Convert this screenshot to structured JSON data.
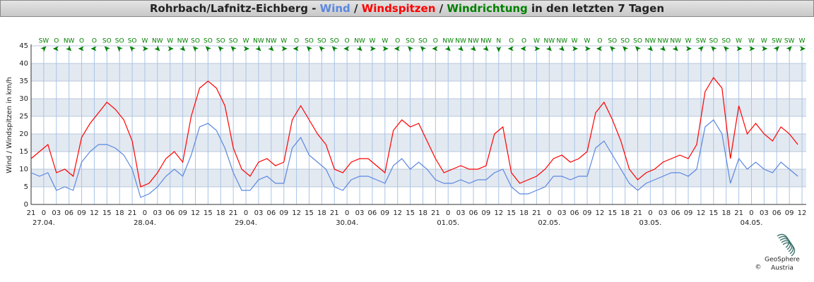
{
  "chart_data": {
    "type": "line",
    "title_parts": [
      "Rohrbach/Lafnitz-Eichberg - ",
      " / ",
      " / ",
      " in den letzten 7 Tagen"
    ],
    "ylabel": "Wind / Windspitzen in km/h",
    "x": [
      0,
      2,
      4,
      6,
      8,
      10,
      12,
      14,
      16,
      18,
      20,
      22,
      24,
      26,
      28,
      30,
      32,
      34,
      36,
      38,
      40,
      42,
      44,
      46,
      48,
      50,
      52,
      54,
      56,
      58,
      60,
      62,
      64,
      66,
      68,
      70,
      72,
      74,
      76,
      78,
      80,
      82,
      84,
      86,
      88,
      90,
      92,
      94,
      96,
      98,
      100,
      102,
      104,
      106,
      108,
      110,
      112,
      114,
      116,
      118,
      120,
      122,
      124,
      126,
      128,
      130,
      132,
      134,
      136,
      138,
      140,
      142,
      144,
      146,
      148,
      150,
      152,
      154,
      156,
      158,
      160,
      162,
      164,
      166,
      168,
      170,
      172,
      174,
      176,
      178,
      180,
      182
    ],
    "series": [
      {
        "name": "Wind",
        "color": "#5b87e0",
        "values": [
          9,
          8,
          9,
          4,
          5,
          4,
          12,
          15,
          17,
          17,
          16,
          14,
          10,
          2,
          3,
          5,
          8,
          10,
          8,
          14,
          22,
          23,
          21,
          16,
          9,
          4,
          4,
          7,
          8,
          6,
          6,
          16,
          19,
          14,
          12,
          10,
          5,
          4,
          7,
          8,
          8,
          7,
          6,
          11,
          13,
          10,
          12,
          10,
          7,
          6,
          6,
          7,
          6,
          7,
          7,
          9,
          10,
          5,
          3,
          3,
          4,
          5,
          8,
          8,
          7,
          8,
          8,
          16,
          18,
          14,
          10,
          6,
          4,
          6,
          7,
          8,
          9,
          9,
          8,
          10,
          22,
          24,
          20,
          6,
          13,
          10,
          12,
          10,
          9,
          12,
          10,
          8
        ]
      },
      {
        "name": "Windspitzen",
        "color": "#ff0000",
        "values": [
          13,
          15,
          17,
          9,
          10,
          8,
          19,
          23,
          26,
          29,
          27,
          24,
          18,
          5,
          6,
          9,
          13,
          15,
          12,
          25,
          33,
          35,
          33,
          28,
          16,
          10,
          8,
          12,
          13,
          11,
          12,
          24,
          28,
          24,
          20,
          17,
          10,
          9,
          12,
          13,
          13,
          11,
          9,
          21,
          24,
          22,
          23,
          18,
          13,
          9,
          10,
          11,
          10,
          10,
          11,
          20,
          22,
          9,
          6,
          7,
          8,
          10,
          13,
          14,
          12,
          13,
          15,
          26,
          29,
          24,
          18,
          10,
          7,
          9,
          10,
          12,
          13,
          14,
          13,
          17,
          32,
          36,
          33,
          13,
          28,
          20,
          23,
          20,
          18,
          22,
          20,
          17
        ]
      }
    ],
    "wind_direction": {
      "name": "Windrichtung",
      "color": "#008000",
      "x": [
        3,
        6,
        9,
        12,
        15,
        18,
        21,
        24,
        27,
        30,
        33,
        36,
        39,
        42,
        45,
        48,
        51,
        54,
        57,
        60,
        63,
        66,
        69,
        72,
        75,
        78,
        81,
        84,
        87,
        90,
        93,
        96,
        99,
        102,
        105,
        108,
        111,
        114,
        117,
        120,
        123,
        126,
        129,
        132,
        135,
        138,
        141,
        144,
        147,
        150,
        153,
        156,
        159,
        162,
        165,
        168,
        171,
        174,
        177,
        180,
        183
      ],
      "labels": [
        "SW",
        "O",
        "NW",
        "O",
        "O",
        "SO",
        "SO",
        "SO",
        "W",
        "NW",
        "W",
        "NW",
        "SO",
        "SO",
        "SO",
        "SO",
        "W",
        "NW",
        "NW",
        "W",
        "O",
        "SO",
        "SO",
        "SO",
        "O",
        "NW",
        "W",
        "W",
        "O",
        "SO",
        "SO",
        "O",
        "NW",
        "NW",
        "NW",
        "NW",
        "N",
        "O",
        "O",
        "W",
        "NW",
        "NW",
        "W",
        "W",
        "O",
        "SO",
        "SO",
        "SO",
        "NW",
        "NW",
        "NW",
        "W",
        "SW",
        "SO",
        "SO",
        "W",
        "W",
        "W",
        "SW",
        "SW",
        "W"
      ]
    },
    "xlim": [
      0,
      184
    ],
    "xticks": [
      {
        "value": 0,
        "label": "21"
      },
      {
        "value": 3,
        "label": "0"
      },
      {
        "value": 6,
        "label": "03"
      },
      {
        "value": 9,
        "label": "06"
      },
      {
        "value": 12,
        "label": "09"
      },
      {
        "value": 15,
        "label": "12"
      },
      {
        "value": 18,
        "label": "15"
      },
      {
        "value": 21,
        "label": "18"
      },
      {
        "value": 24,
        "label": "21"
      },
      {
        "value": 27,
        "label": "0"
      },
      {
        "value": 30,
        "label": "03"
      },
      {
        "value": 33,
        "label": "06"
      },
      {
        "value": 36,
        "label": "09"
      },
      {
        "value": 39,
        "label": "12"
      },
      {
        "value": 42,
        "label": "15"
      },
      {
        "value": 45,
        "label": "18"
      },
      {
        "value": 48,
        "label": "21"
      },
      {
        "value": 51,
        "label": "0"
      },
      {
        "value": 54,
        "label": "03"
      },
      {
        "value": 57,
        "label": "06"
      },
      {
        "value": 60,
        "label": "09"
      },
      {
        "value": 63,
        "label": "12"
      },
      {
        "value": 66,
        "label": "15"
      },
      {
        "value": 69,
        "label": "18"
      },
      {
        "value": 72,
        "label": "21"
      },
      {
        "value": 75,
        "label": "0"
      },
      {
        "value": 78,
        "label": "03"
      },
      {
        "value": 81,
        "label": "06"
      },
      {
        "value": 84,
        "label": "09"
      },
      {
        "value": 87,
        "label": "12"
      },
      {
        "value": 90,
        "label": "15"
      },
      {
        "value": 93,
        "label": "18"
      },
      {
        "value": 96,
        "label": "21"
      },
      {
        "value": 99,
        "label": "0"
      },
      {
        "value": 102,
        "label": "03"
      },
      {
        "value": 105,
        "label": "06"
      },
      {
        "value": 108,
        "label": "09"
      },
      {
        "value": 111,
        "label": "12"
      },
      {
        "value": 114,
        "label": "15"
      },
      {
        "value": 117,
        "label": "18"
      },
      {
        "value": 120,
        "label": "21"
      },
      {
        "value": 123,
        "label": "0"
      },
      {
        "value": 126,
        "label": "03"
      },
      {
        "value": 129,
        "label": "06"
      },
      {
        "value": 132,
        "label": "09"
      },
      {
        "value": 135,
        "label": "12"
      },
      {
        "value": 138,
        "label": "15"
      },
      {
        "value": 141,
        "label": "18"
      },
      {
        "value": 144,
        "label": "21"
      },
      {
        "value": 147,
        "label": "0"
      },
      {
        "value": 150,
        "label": "03"
      },
      {
        "value": 153,
        "label": "06"
      },
      {
        "value": 156,
        "label": "09"
      },
      {
        "value": 159,
        "label": "12"
      },
      {
        "value": 162,
        "label": "15"
      },
      {
        "value": 165,
        "label": "18"
      },
      {
        "value": 168,
        "label": "21"
      },
      {
        "value": 171,
        "label": "0"
      },
      {
        "value": 174,
        "label": "03"
      },
      {
        "value": 177,
        "label": "06"
      },
      {
        "value": 180,
        "label": "09"
      },
      {
        "value": 183,
        "label": "12"
      }
    ],
    "date_labels": [
      {
        "value": 3,
        "label": "27.04."
      },
      {
        "value": 27,
        "label": "28.04."
      },
      {
        "value": 51,
        "label": "29.04."
      },
      {
        "value": 75,
        "label": "30.04."
      },
      {
        "value": 99,
        "label": "01.05."
      },
      {
        "value": 123,
        "label": "02.05."
      },
      {
        "value": 147,
        "label": "03.05."
      },
      {
        "value": 171,
        "label": "04.05."
      }
    ],
    "ylim": [
      0,
      45
    ],
    "yticks": [
      0,
      5,
      10,
      15,
      20,
      25,
      30,
      35,
      40,
      45
    ],
    "grid": true,
    "logo": {
      "name": "GeoSphere",
      "country": "Austria",
      "copyright": "©"
    }
  }
}
